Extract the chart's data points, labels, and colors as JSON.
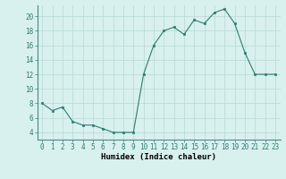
{
  "x": [
    0,
    1,
    2,
    3,
    4,
    5,
    6,
    7,
    8,
    9,
    10,
    11,
    12,
    13,
    14,
    15,
    16,
    17,
    18,
    19,
    20,
    21,
    22,
    23
  ],
  "y": [
    8,
    7,
    7.5,
    5.5,
    5,
    5,
    4.5,
    4,
    4,
    4,
    12,
    16,
    18,
    18.5,
    17.5,
    19.5,
    19,
    20.5,
    21,
    19,
    15,
    12,
    12,
    12
  ],
  "line_color": "#2e7d72",
  "marker_color": "#2e7d72",
  "bg_color": "#d8f0ee",
  "grid_color": "#b8d8d4",
  "xlabel": "Humidex (Indice chaleur)",
  "xlim": [
    -0.5,
    23.5
  ],
  "ylim": [
    3.0,
    21.5
  ],
  "yticks": [
    4,
    6,
    8,
    10,
    12,
    14,
    16,
    18,
    20
  ],
  "xticks": [
    0,
    1,
    2,
    3,
    4,
    5,
    6,
    7,
    8,
    9,
    10,
    11,
    12,
    13,
    14,
    15,
    16,
    17,
    18,
    19,
    20,
    21,
    22,
    23
  ],
  "tick_fontsize": 5.5,
  "label_fontsize": 6.5
}
